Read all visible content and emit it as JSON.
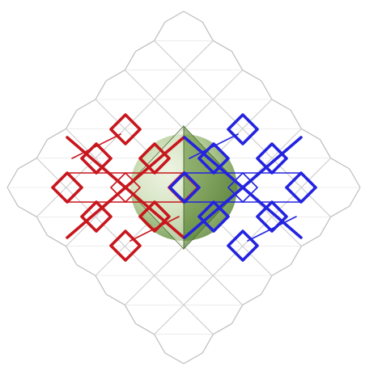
{
  "figure": {
    "description_labels": [],
    "colors": {
      "background": "#ffffff",
      "lattice": "#bdbdbd",
      "lattice_inner": "#cccccc",
      "cell_left": "#c8161d",
      "cell_right": "#2323e0",
      "sphere_light": "#e9f0dc",
      "sphere_dark": "#5f8a3a",
      "sphere_edge": "#4b6b2e"
    },
    "elements": {
      "lattice": "rhombic-dodecahedral-lattice",
      "left_cell": "red-lattice-cell",
      "right_cell": "blue-lattice-cell",
      "center_body": "green-rhombic-dodecahedron-sphere"
    }
  }
}
